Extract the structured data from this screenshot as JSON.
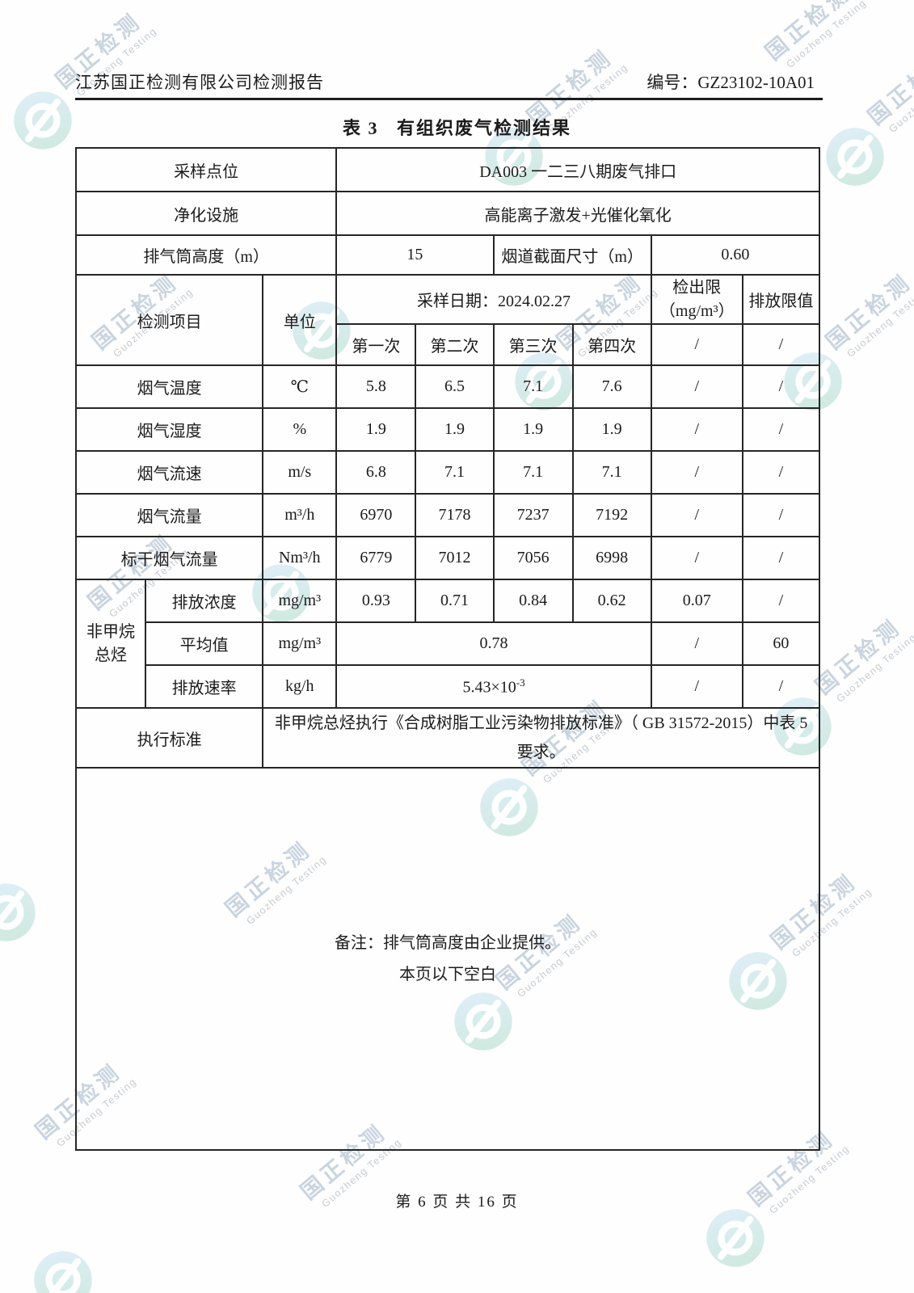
{
  "page": {
    "header_left": "江苏国正检测有限公司检测报告",
    "header_right": "编号：GZ23102-10A01",
    "title": "表 3   有组织废气检测结果",
    "footer": "第 6 页 共 16 页"
  },
  "watermark": {
    "text_cn": "国正检测",
    "text_en": "Guozheng Testing",
    "text_color": "#c7d2de",
    "logo_blue": "#c3e0f4",
    "logo_teal": "#a6d8c6"
  },
  "table": {
    "info_rows": [
      {
        "label": "采样点位",
        "value": "DA003 一二三八期废气排口"
      },
      {
        "label": "净化设施",
        "value": "高能离子激发+光催化氧化"
      }
    ],
    "stack_row": {
      "label": "排气筒高度（m）",
      "value": "15",
      "label2": "烟道截面尺寸（m）",
      "value2": "0.60"
    },
    "header": {
      "item": "检测项目",
      "unit": "单位",
      "date": "采样日期：2024.02.27",
      "detect_limit_l1": "检出限",
      "detect_limit_l2": "（mg/m³）",
      "emission_limit": "排放限值",
      "runs": [
        "第一次",
        "第二次",
        "第三次",
        "第四次"
      ],
      "detect_slash": "/",
      "emission_slash": "/"
    },
    "rows": [
      {
        "item": "烟气温度",
        "unit": "℃",
        "v": [
          "5.8",
          "6.5",
          "7.1",
          "7.6"
        ],
        "dl": "/",
        "el": "/"
      },
      {
        "item": "烟气湿度",
        "unit": "%",
        "v": [
          "1.9",
          "1.9",
          "1.9",
          "1.9"
        ],
        "dl": "/",
        "el": "/"
      },
      {
        "item": "烟气流速",
        "unit": "m/s",
        "v": [
          "6.8",
          "7.1",
          "7.1",
          "7.1"
        ],
        "dl": "/",
        "el": "/"
      },
      {
        "item": "烟气流量",
        "unit": "m³/h",
        "v": [
          "6970",
          "7178",
          "7237",
          "7192"
        ],
        "dl": "/",
        "el": "/"
      },
      {
        "item": "标干烟气流量",
        "unit": "Nm³/h",
        "v": [
          "6779",
          "7012",
          "7056",
          "6998"
        ],
        "dl": "/",
        "el": "/"
      }
    ],
    "group": {
      "label_l1": "非甲烷",
      "label_l2": "总烃",
      "rows": [
        {
          "item": "排放浓度",
          "unit": "mg/m³",
          "v": [
            "0.93",
            "0.71",
            "0.84",
            "0.62"
          ],
          "dl": "0.07",
          "el": "/"
        },
        {
          "item": "平均值",
          "unit": "mg/m³",
          "merged": "0.78",
          "dl": "/",
          "el": "60"
        },
        {
          "item": "排放速率",
          "unit": "kg/h",
          "merged_base": "5.43×10",
          "merged_exp": "-3",
          "dl": "/",
          "el": "/"
        }
      ]
    },
    "standard_row": {
      "label": "执行标准",
      "value": "非甲烷总烃执行《合成树脂工业污染物排放标准》（ GB 31572-2015）中表 5 要求。"
    },
    "note_line1": "备注：排气筒高度由企业提供。",
    "note_line2": "本页以下空白"
  }
}
